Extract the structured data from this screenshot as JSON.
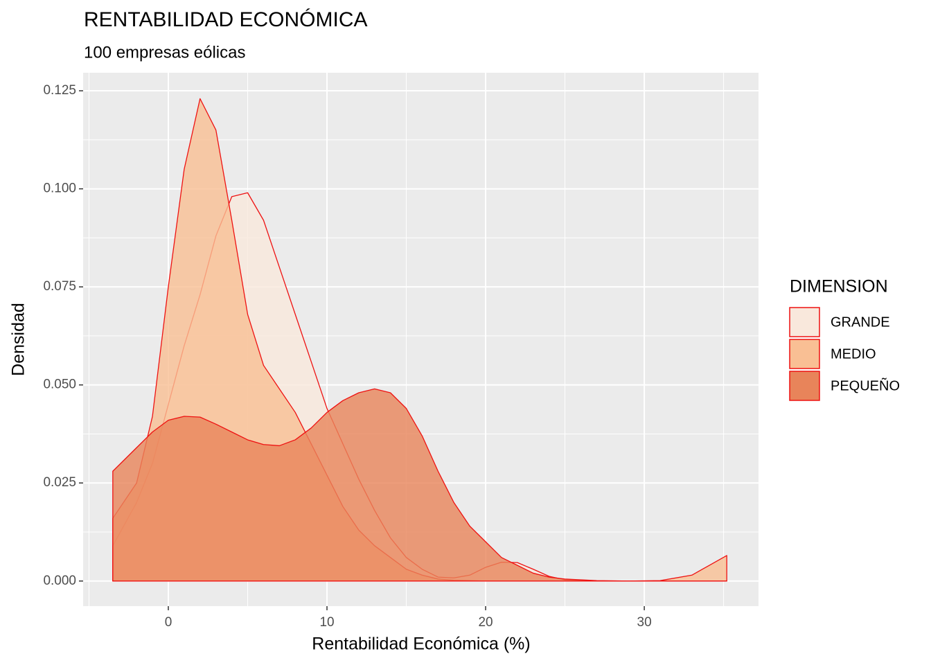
{
  "chart_data": {
    "type": "density",
    "title": "RENTABILIDAD ECONÓMICA",
    "subtitle": "100 empresas eólicas",
    "x_label": "Rentabilidad Económica (%)",
    "y_label": "Densidad",
    "legend_title": "DIMENSION",
    "x": [
      -3.5,
      -2,
      -1,
      0,
      1,
      2,
      3,
      4,
      5,
      6,
      7,
      8,
      9,
      10,
      11,
      12,
      13,
      14,
      15,
      16,
      17,
      18,
      19,
      20,
      21,
      22,
      23,
      24,
      25,
      27,
      29,
      31,
      33,
      35.2
    ],
    "series": [
      {
        "name": "GRANDE",
        "color": "#f9e8dc",
        "values": [
          0.009,
          0.02,
          0.03,
          0.045,
          0.06,
          0.073,
          0.088,
          0.098,
          0.099,
          0.092,
          0.08,
          0.068,
          0.056,
          0.044,
          0.035,
          0.026,
          0.018,
          0.011,
          0.006,
          0.003,
          0.001,
          0.0008,
          0.0015,
          0.0035,
          0.0048,
          0.0047,
          0.003,
          0.0012,
          0.0003,
          0,
          0,
          0,
          0,
          0
        ]
      },
      {
        "name": "MEDIO",
        "color": "#f9bf94",
        "values": [
          0.016,
          0.025,
          0.042,
          0.075,
          0.105,
          0.123,
          0.115,
          0.092,
          0.068,
          0.055,
          0.049,
          0.043,
          0.035,
          0.027,
          0.019,
          0.013,
          0.009,
          0.006,
          0.003,
          0.0015,
          0.0005,
          0.0002,
          0.0001,
          0,
          0,
          0,
          0,
          0,
          0,
          0,
          0,
          0.0001,
          0.0015,
          0.0065
        ]
      },
      {
        "name": "PEQUEÑO",
        "color": "#e8845a",
        "values": [
          0.028,
          0.034,
          0.038,
          0.041,
          0.042,
          0.0418,
          0.04,
          0.038,
          0.036,
          0.0348,
          0.0345,
          0.036,
          0.039,
          0.043,
          0.046,
          0.048,
          0.049,
          0.048,
          0.044,
          0.037,
          0.028,
          0.02,
          0.014,
          0.01,
          0.006,
          0.004,
          0.002,
          0.001,
          0.0005,
          0.0001,
          0,
          0,
          0,
          0
        ]
      }
    ],
    "line_color": "#ee1111",
    "xlim": [
      -5.37,
      37.2
    ],
    "ylim": [
      -0.0064,
      0.1296
    ],
    "xticks": [
      0,
      10,
      20,
      30
    ],
    "yticks": [
      {
        "value": 0,
        "label": "0.000"
      },
      {
        "value": 0.025,
        "label": "0.025"
      },
      {
        "value": 0.05,
        "label": "0.050"
      },
      {
        "value": 0.075,
        "label": "0.075"
      },
      {
        "value": 0.1,
        "label": "0.100"
      },
      {
        "value": 0.125,
        "label": "0.125"
      }
    ],
    "grid": true
  }
}
